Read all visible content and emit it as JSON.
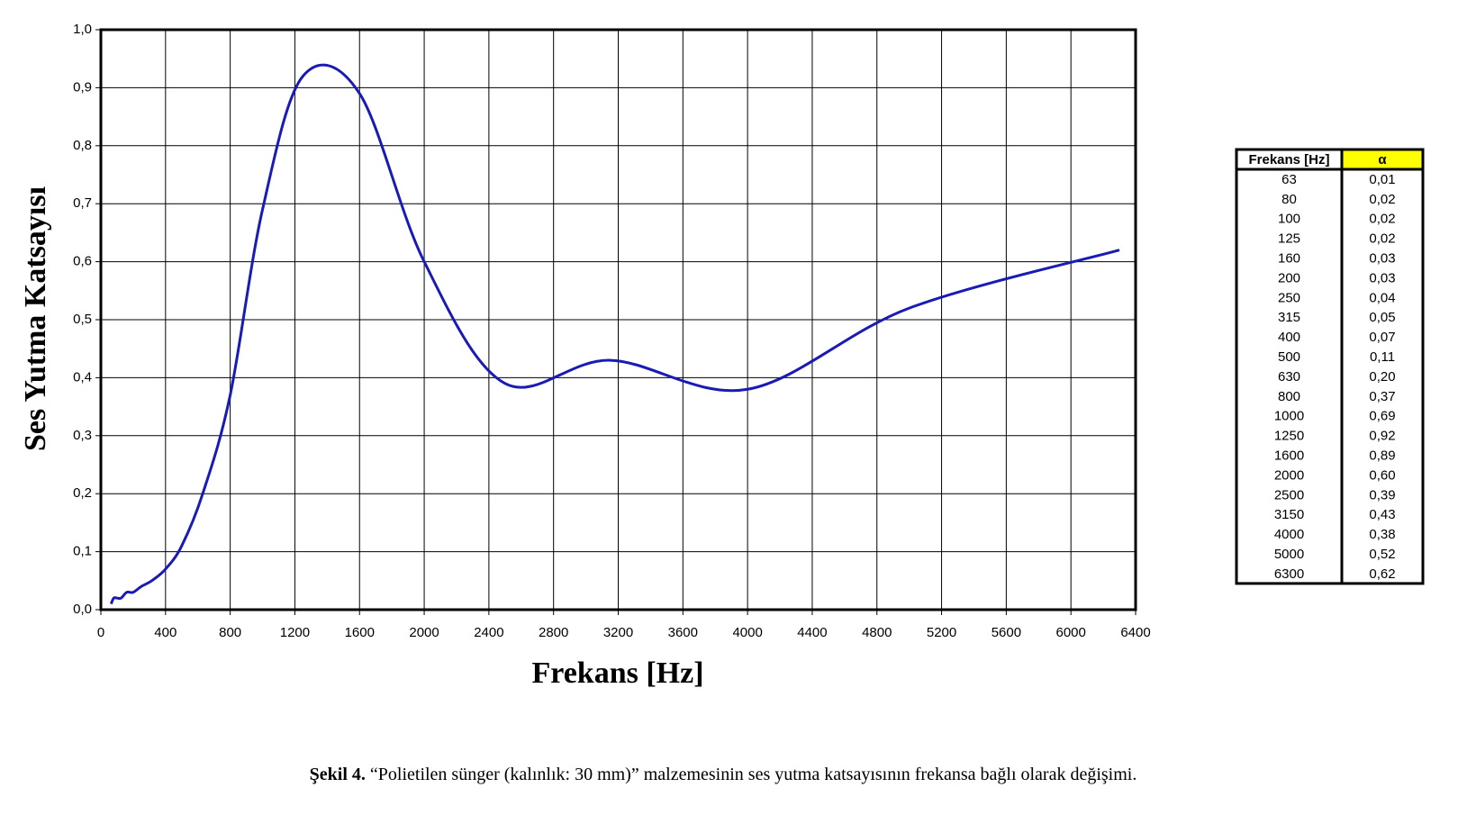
{
  "chart_data": {
    "type": "line",
    "xlabel": "Frekans [Hz]",
    "ylabel": "Ses Yutma Katsayısı",
    "x": [
      63,
      80,
      100,
      125,
      160,
      200,
      250,
      315,
      400,
      500,
      630,
      800,
      1000,
      1250,
      1600,
      2000,
      2500,
      3150,
      4000,
      5000,
      6300
    ],
    "values": [
      0.01,
      0.02,
      0.02,
      0.02,
      0.03,
      0.03,
      0.04,
      0.05,
      0.07,
      0.11,
      0.2,
      0.37,
      0.69,
      0.92,
      0.89,
      0.6,
      0.39,
      0.43,
      0.38,
      0.52,
      0.62
    ],
    "value_labels": [
      "0,01",
      "0,02",
      "0,02",
      "0,02",
      "0,03",
      "0,03",
      "0,04",
      "0,05",
      "0,07",
      "0,11",
      "0,20",
      "0,37",
      "0,69",
      "0,92",
      "0,89",
      "0,60",
      "0,39",
      "0,43",
      "0,38",
      "0,52",
      "0,62"
    ],
    "color": "#1a1ab4",
    "xlim": [
      0,
      6400
    ],
    "xticks": [
      0,
      400,
      800,
      1200,
      1600,
      2000,
      2400,
      2800,
      3200,
      3600,
      4000,
      4400,
      4800,
      5200,
      5600,
      6000,
      6400
    ],
    "ylim": [
      0,
      1
    ],
    "yticks": [
      {
        "value": 0,
        "label": "0,0"
      },
      {
        "value": 0.1,
        "label": "0,1"
      },
      {
        "value": 0.2,
        "label": "0,2"
      },
      {
        "value": 0.3,
        "label": "0,3"
      },
      {
        "value": 0.4,
        "label": "0,4"
      },
      {
        "value": 0.5,
        "label": "0,5"
      },
      {
        "value": 0.6,
        "label": "0,6"
      },
      {
        "value": 0.7,
        "label": "0,7"
      },
      {
        "value": 0.8,
        "label": "0,8"
      },
      {
        "value": 0.9,
        "label": "0,9"
      },
      {
        "value": 1,
        "label": "1,0"
      }
    ],
    "grid": true,
    "table_columns": [
      "Frekans [Hz]",
      "α"
    ],
    "table_header_color": "#ffff00",
    "caption": {
      "label": "Şekil 4.",
      "text": "“Polietilen sünger (kalınlık: 30 mm)” malzemesinin ses yutma katsayısının frekansa bağlı olarak değişimi."
    }
  }
}
